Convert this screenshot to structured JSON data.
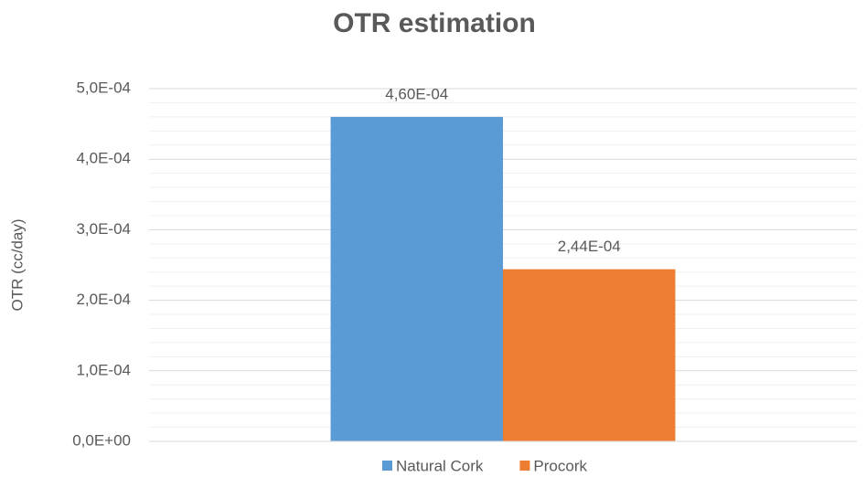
{
  "chart_data": {
    "type": "bar",
    "title": "OTR estimation",
    "y_label": "OTR (cc/day)",
    "categories": [
      null
    ],
    "series": [
      {
        "name": "Natural Cork",
        "color": "#5b9bd5",
        "values": [
          0.00046
        ],
        "value_labels": [
          "4,60E-04"
        ]
      },
      {
        "name": "Procork",
        "color": "#ed7d31",
        "values": [
          0.000244
        ],
        "value_labels": [
          "2,44E-04"
        ]
      }
    ],
    "ylim": [
      0,
      0.0005
    ],
    "yticks": [
      {
        "value": 0,
        "label": "0,0E+00"
      },
      {
        "value": 0.0001,
        "label": "1,0E-04"
      },
      {
        "value": 0.0002,
        "label": "2,0E-04"
      },
      {
        "value": 0.0003,
        "label": "3,0E-04"
      },
      {
        "value": 0.0004,
        "label": "4,0E-04"
      },
      {
        "value": 0.0005,
        "label": "5,0E-04"
      }
    ],
    "minor_yticks": [
      2e-05,
      4e-05,
      6e-05,
      8e-05,
      0.00012,
      0.00014,
      0.00016,
      0.00018,
      0.00022,
      0.00024,
      0.00026,
      0.00028,
      0.00032,
      0.00034,
      0.00036,
      0.00038,
      0.00042,
      0.00044,
      0.00046,
      0.00048
    ],
    "grid": true,
    "legend": "bottom"
  }
}
